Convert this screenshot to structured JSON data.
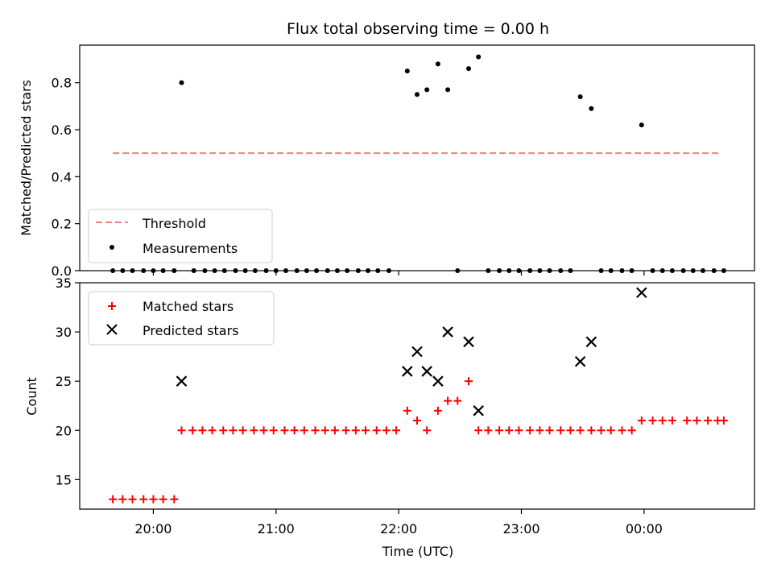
{
  "chart_data": [
    {
      "type": "scatter",
      "title": "Flux total observing time = 0.00 h",
      "xlabel": "",
      "ylabel": "Matched/Predicted stars",
      "x_unit": "time (UTC, hours of day, values >24 denote next day)",
      "xlim": [
        19.4,
        24.9
      ],
      "ylim": [
        0.0,
        0.96
      ],
      "yticks": [
        "0.0",
        "0.2",
        "0.4",
        "0.6",
        "0.8"
      ],
      "legend_placement": "lower-left",
      "threshold": {
        "name": "Threshold",
        "value": 0.5,
        "x_range": [
          19.67,
          24.63
        ],
        "color": "#f08080"
      },
      "series": [
        {
          "name": "Measurements",
          "color": "#000000",
          "marker": "dot",
          "points": [
            [
              19.67,
              0
            ],
            [
              19.75,
              0
            ],
            [
              19.83,
              0
            ],
            [
              19.92,
              0
            ],
            [
              20.0,
              0
            ],
            [
              20.08,
              0
            ],
            [
              20.17,
              0
            ],
            [
              20.23,
              0.8
            ],
            [
              20.33,
              0
            ],
            [
              20.42,
              0
            ],
            [
              20.5,
              0
            ],
            [
              20.58,
              0
            ],
            [
              20.67,
              0
            ],
            [
              20.75,
              0
            ],
            [
              20.83,
              0
            ],
            [
              20.92,
              0
            ],
            [
              21.0,
              0
            ],
            [
              21.08,
              0
            ],
            [
              21.17,
              0
            ],
            [
              21.25,
              0
            ],
            [
              21.33,
              0
            ],
            [
              21.42,
              0
            ],
            [
              21.5,
              0
            ],
            [
              21.58,
              0
            ],
            [
              21.67,
              0
            ],
            [
              21.75,
              0
            ],
            [
              21.83,
              0
            ],
            [
              21.92,
              0
            ],
            [
              22.07,
              0.85
            ],
            [
              22.15,
              0.75
            ],
            [
              22.23,
              0.77
            ],
            [
              22.32,
              0.88
            ],
            [
              22.4,
              0.77
            ],
            [
              22.48,
              0
            ],
            [
              22.57,
              0.86
            ],
            [
              22.65,
              0.91
            ],
            [
              22.73,
              0
            ],
            [
              22.82,
              0
            ],
            [
              22.9,
              0
            ],
            [
              22.98,
              0
            ],
            [
              23.07,
              0
            ],
            [
              23.15,
              0
            ],
            [
              23.23,
              0
            ],
            [
              23.32,
              0
            ],
            [
              23.4,
              0
            ],
            [
              23.48,
              0.74
            ],
            [
              23.57,
              0.69
            ],
            [
              23.65,
              0
            ],
            [
              23.73,
              0
            ],
            [
              23.82,
              0
            ],
            [
              23.9,
              0
            ],
            [
              23.98,
              0.62
            ],
            [
              24.07,
              0
            ],
            [
              24.15,
              0
            ],
            [
              24.23,
              0
            ],
            [
              24.32,
              0
            ],
            [
              24.4,
              0
            ],
            [
              24.48,
              0
            ],
            [
              24.57,
              0
            ],
            [
              24.65,
              0
            ]
          ]
        }
      ]
    },
    {
      "type": "scatter",
      "title": "",
      "xlabel": "Time (UTC)",
      "ylabel": "Count",
      "xlim": [
        19.4,
        24.9
      ],
      "ylim": [
        12,
        35
      ],
      "yticks": [
        "15",
        "20",
        "25",
        "30",
        "35"
      ],
      "xticks": [
        "20:00",
        "21:00",
        "22:00",
        "23:00",
        "00:00"
      ],
      "xtick_values": [
        20,
        21,
        22,
        23,
        24
      ],
      "legend_placement": "upper-left",
      "series": [
        {
          "name": "Matched stars",
          "color": "#ff0000",
          "marker": "plus",
          "points": [
            [
              19.67,
              13
            ],
            [
              19.75,
              13
            ],
            [
              19.83,
              13
            ],
            [
              19.92,
              13
            ],
            [
              20.0,
              13
            ],
            [
              20.08,
              13
            ],
            [
              20.17,
              13
            ],
            [
              20.23,
              20
            ],
            [
              20.32,
              20
            ],
            [
              20.4,
              20
            ],
            [
              20.48,
              20
            ],
            [
              20.57,
              20
            ],
            [
              20.65,
              20
            ],
            [
              20.73,
              20
            ],
            [
              20.82,
              20
            ],
            [
              20.9,
              20
            ],
            [
              20.98,
              20
            ],
            [
              21.07,
              20
            ],
            [
              21.15,
              20
            ],
            [
              21.23,
              20
            ],
            [
              21.32,
              20
            ],
            [
              21.4,
              20
            ],
            [
              21.48,
              20
            ],
            [
              21.57,
              20
            ],
            [
              21.65,
              20
            ],
            [
              21.73,
              20
            ],
            [
              21.82,
              20
            ],
            [
              21.9,
              20
            ],
            [
              21.98,
              20
            ],
            [
              22.07,
              22
            ],
            [
              22.15,
              21
            ],
            [
              22.23,
              20
            ],
            [
              22.32,
              22
            ],
            [
              22.4,
              23
            ],
            [
              22.48,
              23
            ],
            [
              22.57,
              25
            ],
            [
              22.65,
              20
            ],
            [
              22.73,
              20
            ],
            [
              22.82,
              20
            ],
            [
              22.9,
              20
            ],
            [
              22.98,
              20
            ],
            [
              23.07,
              20
            ],
            [
              23.15,
              20
            ],
            [
              23.23,
              20
            ],
            [
              23.32,
              20
            ],
            [
              23.4,
              20
            ],
            [
              23.48,
              20
            ],
            [
              23.57,
              20
            ],
            [
              23.65,
              20
            ],
            [
              23.73,
              20
            ],
            [
              23.82,
              20
            ],
            [
              23.9,
              20
            ],
            [
              23.98,
              21
            ],
            [
              24.07,
              21
            ],
            [
              24.15,
              21
            ],
            [
              24.23,
              21
            ],
            [
              24.35,
              21
            ],
            [
              24.43,
              21
            ],
            [
              24.52,
              21
            ],
            [
              24.6,
              21
            ],
            [
              24.65,
              21
            ]
          ]
        },
        {
          "name": "Predicted stars",
          "color": "#000000",
          "marker": "x",
          "points": [
            [
              20.23,
              25
            ],
            [
              22.07,
              26
            ],
            [
              22.15,
              28
            ],
            [
              22.23,
              26
            ],
            [
              22.32,
              25
            ],
            [
              22.4,
              30
            ],
            [
              22.57,
              29
            ],
            [
              22.65,
              22
            ],
            [
              23.48,
              27
            ],
            [
              23.57,
              29
            ],
            [
              23.98,
              34
            ]
          ]
        }
      ]
    }
  ]
}
